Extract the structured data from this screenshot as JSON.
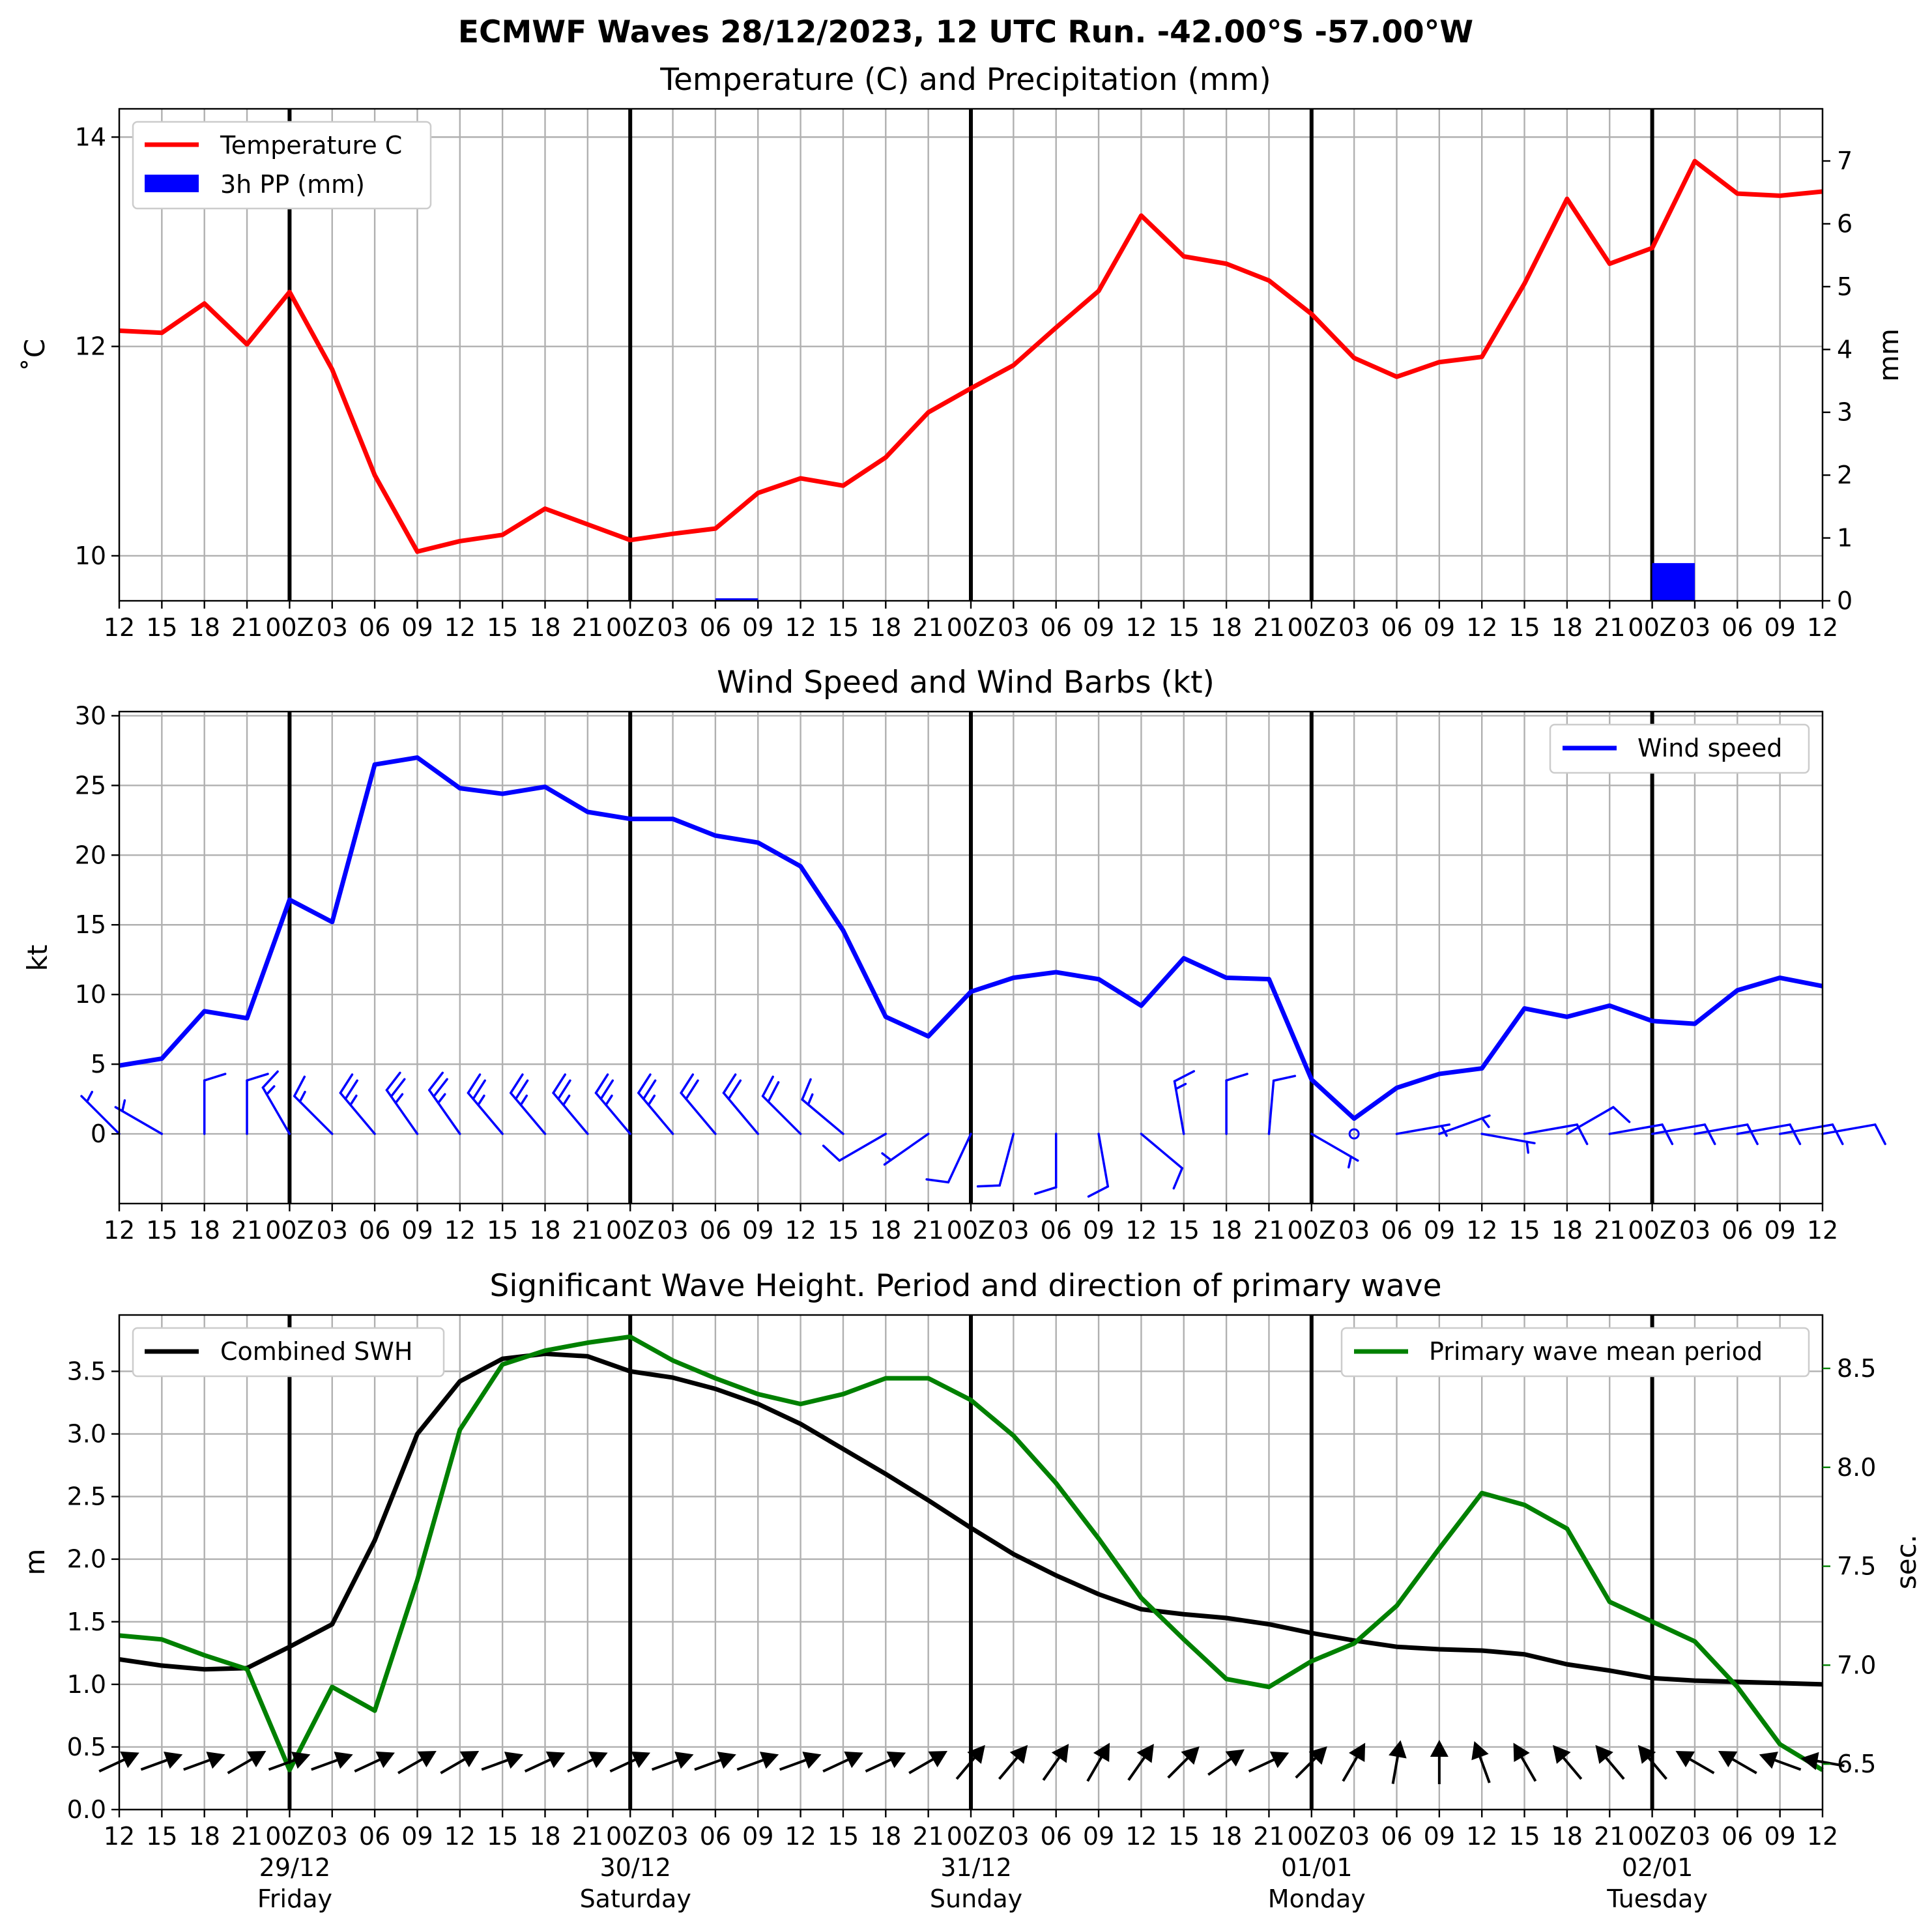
{
  "suptitle": "ECMWF Waves 28/12/2023, 12 UTC Run. -42.00°S -57.00°W",
  "colors": {
    "temperature": "#ff0000",
    "precip": "#0000ff",
    "wind": "#0000ff",
    "swh": "#000000",
    "period": "#008000",
    "grid": "#b0b0b0"
  },
  "time_axis": {
    "tick_labels": [
      "12",
      "15",
      "18",
      "21",
      "00Z",
      "03",
      "06",
      "09",
      "12",
      "15",
      "18",
      "21",
      "00Z",
      "03",
      "06",
      "09",
      "12",
      "15",
      "18",
      "21",
      "00Z",
      "03",
      "06",
      "09",
      "12",
      "15",
      "18",
      "21",
      "00Z",
      "03",
      "06",
      "09",
      "12",
      "15",
      "18",
      "21",
      "00Z",
      "03",
      "06",
      "09",
      "12"
    ],
    "day_boundary_indices": [
      4,
      12,
      20,
      28,
      36
    ],
    "date_labels": [
      {
        "date": "29/12",
        "weekday": "Friday"
      },
      {
        "date": "30/12",
        "weekday": "Saturday"
      },
      {
        "date": "31/12",
        "weekday": "Sunday"
      },
      {
        "date": "01/01",
        "weekday": "Monday"
      },
      {
        "date": "02/01",
        "weekday": "Tuesday"
      }
    ]
  },
  "chart_data": [
    {
      "type": "line",
      "title": "Temperature (C) and Precipitation (mm)",
      "ylabel": "$^\\circ$C",
      "ylabel_display": "˚C",
      "y2label": "mm",
      "ylim": [
        9.57,
        14.27
      ],
      "y2lim": [
        0,
        7.83
      ],
      "yticks": [
        "10",
        "12",
        "14"
      ],
      "y2ticks": [
        "0",
        "1",
        "2",
        "3",
        "4",
        "5",
        "6",
        "7"
      ],
      "grid": true,
      "legend_placement": "upper-left",
      "legend": [
        "Temperature C",
        "3h PP (mm)"
      ],
      "series": [
        {
          "name": "Temperature C",
          "kind": "line",
          "values": [
            12.15,
            12.13,
            12.41,
            12.02,
            12.52,
            11.78,
            10.77,
            10.04,
            10.14,
            10.2,
            10.45,
            10.3,
            10.15,
            10.21,
            10.26,
            10.6,
            10.74,
            10.67,
            10.94,
            11.37,
            11.6,
            11.82,
            12.18,
            12.53,
            13.25,
            12.86,
            12.79,
            12.63,
            12.31,
            11.89,
            11.71,
            11.85,
            11.9,
            12.6,
            13.41,
            12.79,
            12.94,
            13.77,
            13.46,
            13.44,
            13.48
          ]
        },
        {
          "name": "3h PP (mm)",
          "kind": "bar",
          "axis": "right",
          "values": [
            0,
            0,
            0,
            0,
            0,
            0,
            0.01,
            0.01,
            0,
            0,
            0,
            0,
            0,
            0,
            0.04,
            0,
            0.01,
            0,
            0,
            0,
            0,
            0,
            0,
            0,
            0,
            0,
            0,
            0,
            0,
            0,
            0,
            0,
            0,
            0,
            0,
            0,
            0.6,
            0,
            0,
            0,
            0
          ]
        }
      ]
    },
    {
      "type": "line",
      "title": "Wind Speed and Wind Barbs (kt)",
      "ylabel": "kt",
      "ylim": [
        -5,
        30.3
      ],
      "yticks": [
        "0",
        "5",
        "10",
        "15",
        "20",
        "25",
        "30"
      ],
      "grid": true,
      "legend_placement": "upper-right",
      "legend": [
        "Wind speed"
      ],
      "series": [
        {
          "name": "Wind speed",
          "values": [
            4.9,
            5.4,
            8.8,
            8.3,
            16.8,
            15.2,
            26.5,
            27.0,
            24.8,
            24.4,
            24.9,
            23.1,
            22.6,
            22.6,
            21.4,
            20.9,
            19.2,
            14.6,
            8.4,
            7.0,
            10.2,
            11.2,
            11.6,
            11.1,
            9.2,
            12.6,
            11.2,
            11.1,
            3.9,
            1.1,
            3.3,
            4.3,
            4.7,
            9.0,
            8.4,
            9.2,
            8.1,
            7.9,
            10.3,
            11.2,
            10.6
          ]
        }
      ],
      "barbs": {
        "placement": "y = 0",
        "units": "kt",
        "direction_from_deg": [
          315,
          300,
          360,
          360,
          330,
          315,
          320,
          325,
          325,
          320,
          320,
          320,
          320,
          320,
          320,
          320,
          315,
          310,
          240,
          235,
          205,
          195,
          180,
          170,
          130,
          350,
          360,
          5,
          120,
          100,
          80,
          70,
          100,
          80,
          60,
          80,
          80,
          80,
          80,
          80,
          80
        ],
        "speed_kt": [
          4.9,
          5.4,
          8.8,
          8.3,
          16.8,
          15.2,
          26.5,
          27.0,
          24.8,
          24.4,
          24.9,
          23.1,
          22.6,
          22.6,
          21.4,
          20.9,
          19.2,
          14.6,
          8.4,
          7.0,
          10.2,
          11.2,
          11.6,
          11.1,
          9.2,
          12.6,
          11.2,
          11.1,
          3.9,
          1.1,
          3.3,
          4.3,
          4.7,
          9.0,
          8.4,
          9.2,
          8.1,
          7.9,
          10.3,
          11.2,
          10.6
        ]
      }
    },
    {
      "type": "line",
      "title": "Significant Wave Height. Period and direction of primary wave",
      "ylabel": "m",
      "y2label": "sec.",
      "ylim": [
        0,
        3.95
      ],
      "y2lim": [
        6.27,
        8.77
      ],
      "yticks": [
        "0.0",
        "0.5",
        "1.0",
        "1.5",
        "2.0",
        "2.5",
        "3.0",
        "3.5"
      ],
      "y2ticks": [
        "6.5",
        "7.0",
        "7.5",
        "8.0",
        "8.5"
      ],
      "grid": true,
      "legend": [
        "Combined SWH",
        "Primary wave mean period"
      ],
      "legend_placement": [
        "upper-left",
        "upper-right"
      ],
      "series": [
        {
          "name": "Combined SWH",
          "values": [
            1.2,
            1.15,
            1.12,
            1.13,
            1.3,
            1.48,
            2.15,
            3.0,
            3.42,
            3.6,
            3.64,
            3.62,
            3.5,
            3.45,
            3.36,
            3.24,
            3.08,
            2.88,
            2.68,
            2.47,
            2.25,
            2.04,
            1.87,
            1.72,
            1.6,
            1.56,
            1.53,
            1.48,
            1.41,
            1.35,
            1.3,
            1.28,
            1.27,
            1.24,
            1.16,
            1.11,
            1.05,
            1.03,
            1.02,
            1.01,
            1.0
          ]
        },
        {
          "name": "Primary wave mean period",
          "axis": "right",
          "values": [
            7.15,
            7.13,
            7.05,
            6.98,
            6.47,
            6.89,
            6.77,
            7.43,
            8.19,
            8.52,
            8.59,
            8.63,
            8.66,
            8.54,
            8.45,
            8.37,
            8.32,
            8.37,
            8.45,
            8.45,
            8.34,
            8.16,
            7.92,
            7.64,
            7.34,
            7.13,
            6.93,
            6.89,
            7.02,
            7.11,
            7.3,
            7.59,
            7.87,
            7.81,
            7.69,
            7.32,
            7.22,
            7.12,
            6.89,
            6.6,
            6.47
          ]
        }
      ],
      "wave_direction_arrows": {
        "placement": "y = 0.38",
        "direction_to_deg": [
          65,
          70,
          70,
          60,
          70,
          70,
          65,
          60,
          60,
          70,
          65,
          65,
          65,
          70,
          70,
          70,
          70,
          65,
          65,
          60,
          40,
          40,
          35,
          30,
          35,
          45,
          55,
          65,
          45,
          30,
          10,
          0,
          340,
          330,
          320,
          320,
          320,
          300,
          300,
          290,
          280
        ]
      }
    }
  ]
}
